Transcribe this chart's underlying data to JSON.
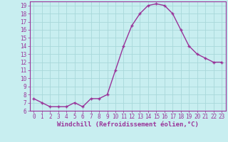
{
  "x": [
    0,
    1,
    2,
    3,
    4,
    5,
    6,
    7,
    8,
    9,
    10,
    11,
    12,
    13,
    14,
    15,
    16,
    17,
    18,
    19,
    20,
    21,
    22,
    23
  ],
  "y": [
    7.5,
    7.0,
    6.5,
    6.5,
    6.5,
    7.0,
    6.5,
    7.5,
    7.5,
    8.0,
    11.0,
    14.0,
    16.5,
    18.0,
    19.0,
    19.2,
    19.0,
    18.0,
    16.0,
    14.0,
    13.0,
    12.5,
    12.0,
    12.0
  ],
  "color": "#993399",
  "bg_color": "#c8eef0",
  "grid_color": "#a8d8da",
  "xlabel": "Windchill (Refroidissement éolien,°C)",
  "ylim_min": 6,
  "ylim_max": 19.5,
  "xlim_min": -0.5,
  "xlim_max": 23.5,
  "yticks": [
    6,
    7,
    8,
    9,
    10,
    11,
    12,
    13,
    14,
    15,
    16,
    17,
    18,
    19
  ],
  "xticks": [
    0,
    1,
    2,
    3,
    4,
    5,
    6,
    7,
    8,
    9,
    10,
    11,
    12,
    13,
    14,
    15,
    16,
    17,
    18,
    19,
    20,
    21,
    22,
    23
  ],
  "tick_fontsize": 5.5,
  "xlabel_fontsize": 6.5,
  "marker": "+",
  "markersize": 3.5,
  "linewidth": 1.0
}
